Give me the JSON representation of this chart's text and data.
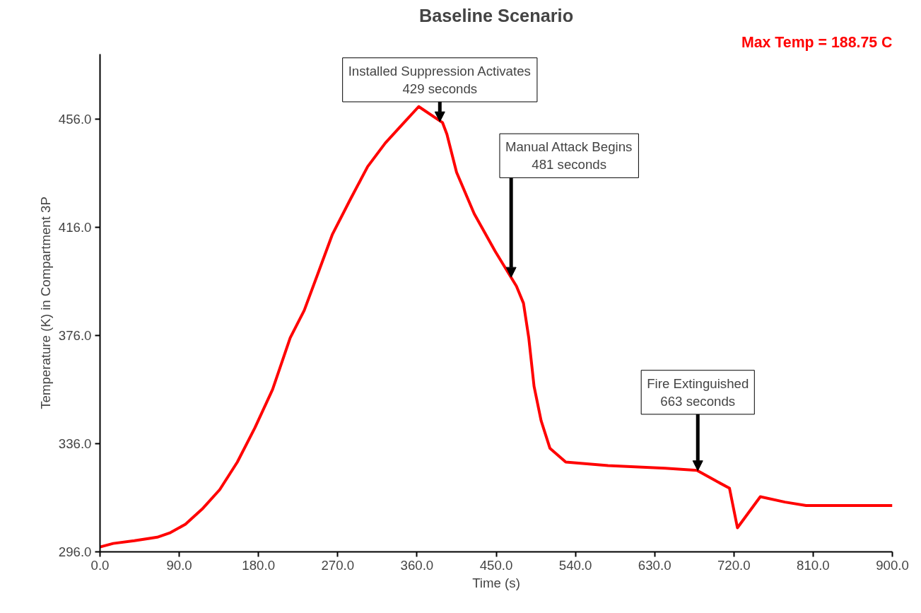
{
  "chart_data": {
    "type": "line",
    "title": "Baseline Scenario",
    "xlabel": "Time (s)",
    "ylabel": "Temperature (K) in Compartment 3P",
    "x": [
      0,
      15,
      39,
      65,
      80,
      97,
      116,
      136,
      156,
      176,
      196,
      216,
      232,
      248,
      264,
      284,
      304,
      324,
      344,
      362,
      389,
      394,
      405,
      425,
      449,
      473,
      481,
      487,
      493,
      501,
      511,
      529,
      577,
      642,
      678,
      698,
      715,
      724,
      750,
      778,
      802,
      900
    ],
    "series": [
      {
        "color": "#ff0000",
        "values": [
          297.8,
          299.1,
          300.1,
          301.4,
          303.1,
          306.2,
          311.8,
          319.0,
          329.2,
          341.9,
          356.0,
          375.1,
          385.3,
          399.3,
          413.4,
          426.1,
          438.4,
          447.1,
          454.2,
          460.6,
          454.7,
          450.4,
          436.3,
          421.0,
          407.0,
          394.2,
          387.9,
          375.1,
          357.2,
          344.5,
          334.3,
          329.2,
          327.9,
          326.9,
          326.1,
          322.5,
          319.5,
          304.9,
          316.4,
          314.4,
          313.1,
          313.1
        ]
      }
    ],
    "xlim": [
      0,
      900
    ],
    "ylim": [
      296,
      480
    ],
    "xticks": [
      {
        "value": 0,
        "label": "0.0"
      },
      {
        "value": 90,
        "label": "90.0"
      },
      {
        "value": 180,
        "label": "180.0"
      },
      {
        "value": 270,
        "label": "270.0"
      },
      {
        "value": 360,
        "label": "360.0"
      },
      {
        "value": 450,
        "label": "450.0"
      },
      {
        "value": 540,
        "label": "540.0"
      },
      {
        "value": 630,
        "label": "630.0"
      },
      {
        "value": 720,
        "label": "720.0"
      },
      {
        "value": 810,
        "label": "810.0"
      },
      {
        "value": 900,
        "label": "900.0"
      }
    ],
    "yticks": [
      {
        "value": 296,
        "label": "296.0"
      },
      {
        "value": 336,
        "label": "336.0"
      },
      {
        "value": 376,
        "label": "376.0"
      },
      {
        "value": 416,
        "label": "416.0"
      },
      {
        "value": 456,
        "label": "456.0"
      }
    ],
    "annotations": [
      "Max Temp = 188.75 C",
      {
        "text": "Installed Suppression Activates\n429 seconds",
        "x": 386,
        "y": 455
      },
      {
        "text": "Manual Attack Begins\n481 seconds",
        "x": 467,
        "y": 397.5
      },
      {
        "text": "Fire Extinguished\n663 seconds",
        "x": 679,
        "y": 326
      }
    ],
    "grid": false,
    "marker": "none",
    "line_style": "solid"
  }
}
